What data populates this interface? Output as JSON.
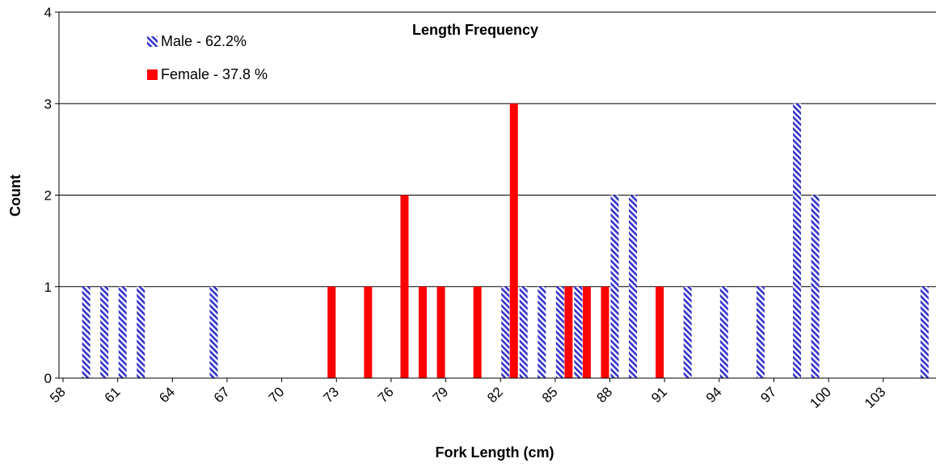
{
  "chart_data": {
    "type": "bar",
    "title": "Length Frequency",
    "xlabel": "Fork Length (cm)",
    "ylabel": "Count",
    "ylim": [
      0,
      4
    ],
    "yticks": [
      0,
      1,
      2,
      3,
      4
    ],
    "xticks": [
      58,
      61,
      64,
      67,
      70,
      73,
      76,
      79,
      82,
      85,
      88,
      91,
      94,
      97,
      100,
      103
    ],
    "xlim": [
      58,
      105.5
    ],
    "grid": "horizontal",
    "legend_position": "top-left",
    "series": [
      {
        "name": "Male - 62.2%",
        "color": "#3333cc",
        "pattern": "diagonal-hatch",
        "points": [
          {
            "x": 59,
            "y": 1
          },
          {
            "x": 60,
            "y": 1
          },
          {
            "x": 61,
            "y": 1
          },
          {
            "x": 62,
            "y": 1
          },
          {
            "x": 66,
            "y": 1
          },
          {
            "x": 82,
            "y": 1
          },
          {
            "x": 83,
            "y": 1
          },
          {
            "x": 84,
            "y": 1
          },
          {
            "x": 85,
            "y": 1
          },
          {
            "x": 86,
            "y": 1
          },
          {
            "x": 88,
            "y": 2
          },
          {
            "x": 89,
            "y": 2
          },
          {
            "x": 92,
            "y": 1
          },
          {
            "x": 94,
            "y": 1
          },
          {
            "x": 96,
            "y": 1
          },
          {
            "x": 98,
            "y": 3
          },
          {
            "x": 99,
            "y": 2
          },
          {
            "x": 105,
            "y": 1
          }
        ]
      },
      {
        "name": "Female - 37.8 %",
        "color": "#ff0000",
        "pattern": "solid",
        "points": [
          {
            "x": 73,
            "y": 1
          },
          {
            "x": 75,
            "y": 1
          },
          {
            "x": 77,
            "y": 2
          },
          {
            "x": 78,
            "y": 1
          },
          {
            "x": 79,
            "y": 1
          },
          {
            "x": 81,
            "y": 1
          },
          {
            "x": 83,
            "y": 3
          },
          {
            "x": 86,
            "y": 1
          },
          {
            "x": 87,
            "y": 1
          },
          {
            "x": 88,
            "y": 1
          },
          {
            "x": 91,
            "y": 1
          }
        ]
      }
    ]
  }
}
